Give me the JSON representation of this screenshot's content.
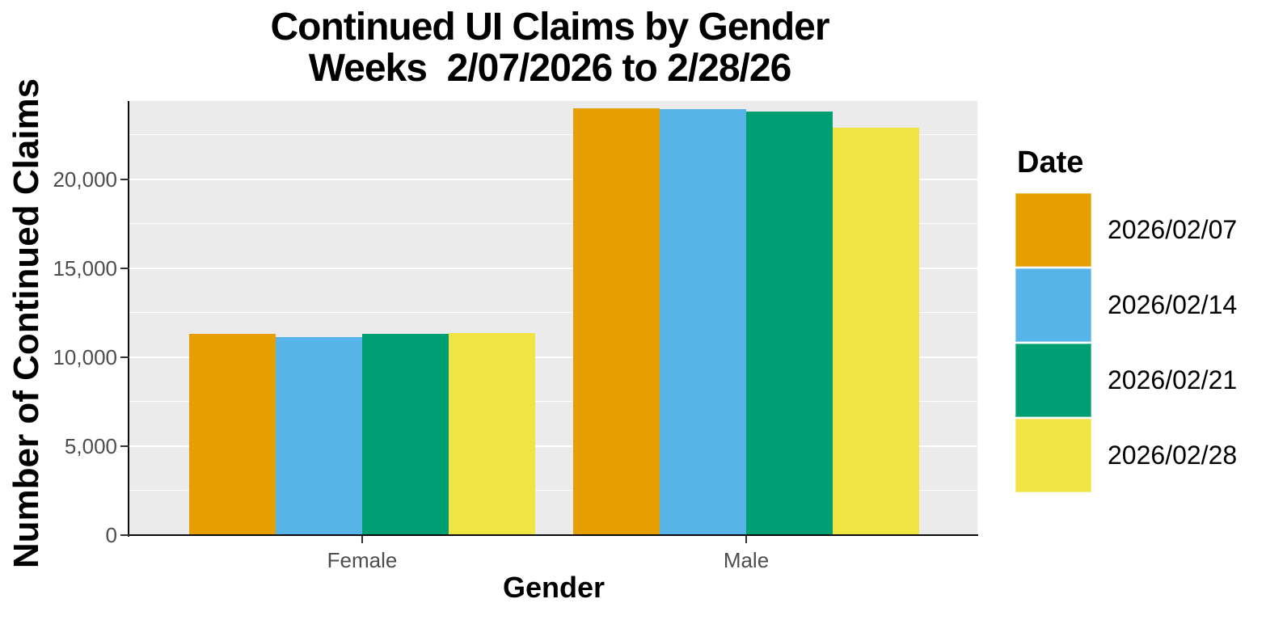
{
  "chart_data": {
    "type": "bar",
    "title": "Continued UI Claims by Gender",
    "subtitle": "Weeks  2/07/2026 to 2/28/26",
    "xlabel": "Gender",
    "ylabel": "Number of Continued Claims",
    "categories": [
      "Female",
      "Male"
    ],
    "series": [
      {
        "name": "2026/02/07",
        "color": "#E69F00",
        "values": [
          11300,
          24000
        ]
      },
      {
        "name": "2026/02/14",
        "color": "#56B4E9",
        "values": [
          11140,
          23950
        ]
      },
      {
        "name": "2026/02/21",
        "color": "#009E73",
        "values": [
          11300,
          23800
        ]
      },
      {
        "name": "2026/02/28",
        "color": "#F0E442",
        "values": [
          11340,
          22900
        ]
      }
    ],
    "ylim": [
      0,
      24400
    ],
    "yticks": [
      {
        "value": 0,
        "label": "0"
      },
      {
        "value": 5000,
        "label": "5,000"
      },
      {
        "value": 10000,
        "label": "10,000"
      },
      {
        "value": 15000,
        "label": "15,000"
      },
      {
        "value": 20000,
        "label": "20,000"
      }
    ],
    "grid": {
      "major_step": 5000,
      "minor_step": 2500,
      "color": "#FFFFFF",
      "visible": true
    },
    "legend": {
      "title": "Date",
      "position": "right"
    },
    "panel_bg": "#EBEBEB",
    "axis_text_color": "#4D4D4D"
  }
}
